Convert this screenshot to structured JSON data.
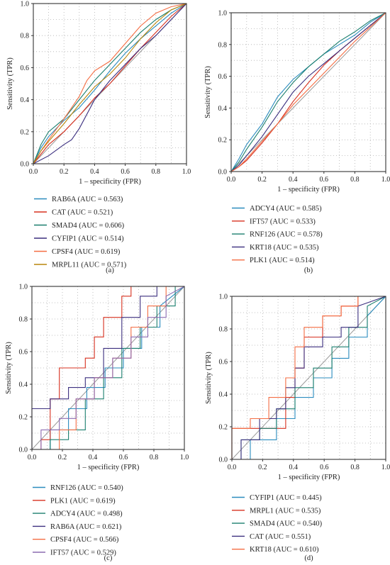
{
  "figure": {
    "common": {
      "xlabel": "1 – specificity (FPR)",
      "ylabel": "Sensitivity (TPR)",
      "ticks": [
        "0.0",
        "0.2",
        "0.4",
        "0.6",
        "0.8",
        "1.0"
      ]
    }
  },
  "chart_data": [
    {
      "type": "line",
      "panel_label": "(a)",
      "xlabel": "1 – specificity (FPR)",
      "ylabel": "Sensitivity (TPR)",
      "xlim": [
        0,
        1
      ],
      "ylim": [
        0,
        1
      ],
      "grid": true,
      "legend_position": "below",
      "series": [
        {
          "name": "RAB6A (AUC = 0.563)",
          "color": "#2b8cbe",
          "x": [
            0,
            0.05,
            0.1,
            0.15,
            0.2,
            0.3,
            0.4,
            0.5,
            0.6,
            0.7,
            0.8,
            0.9,
            1.0
          ],
          "y": [
            0,
            0.1,
            0.17,
            0.22,
            0.27,
            0.35,
            0.46,
            0.58,
            0.69,
            0.78,
            0.86,
            0.94,
            1.0
          ]
        },
        {
          "name": "CAT (AUC = 0.521)",
          "color": "#d7301f",
          "x": [
            0,
            0.05,
            0.1,
            0.2,
            0.3,
            0.4,
            0.5,
            0.6,
            0.7,
            0.8,
            0.9,
            1.0
          ],
          "y": [
            0,
            0.06,
            0.12,
            0.2,
            0.3,
            0.41,
            0.5,
            0.61,
            0.72,
            0.82,
            0.92,
            1.0
          ]
        },
        {
          "name": "SMAD4 (AUC = 0.606)",
          "color": "#1b7f6e",
          "x": [
            0,
            0.05,
            0.1,
            0.15,
            0.2,
            0.3,
            0.4,
            0.5,
            0.6,
            0.7,
            0.8,
            0.9,
            1.0
          ],
          "y": [
            0,
            0.12,
            0.2,
            0.24,
            0.28,
            0.4,
            0.52,
            0.62,
            0.72,
            0.82,
            0.9,
            0.96,
            1.0
          ]
        },
        {
          "name": "CYFIP1 (AUC = 0.514)",
          "color": "#3b2f7f",
          "x": [
            0,
            0.1,
            0.2,
            0.25,
            0.3,
            0.4,
            0.5,
            0.6,
            0.7,
            0.8,
            0.9,
            1.0
          ],
          "y": [
            0,
            0.05,
            0.12,
            0.15,
            0.22,
            0.4,
            0.52,
            0.62,
            0.72,
            0.8,
            0.9,
            1.0
          ]
        },
        {
          "name": "CPSF4 (AUC = 0.619)",
          "color": "#f46d43",
          "x": [
            0,
            0.05,
            0.1,
            0.2,
            0.3,
            0.35,
            0.4,
            0.5,
            0.6,
            0.7,
            0.8,
            0.9,
            1.0
          ],
          "y": [
            0,
            0.08,
            0.15,
            0.28,
            0.42,
            0.52,
            0.58,
            0.64,
            0.75,
            0.86,
            0.94,
            0.98,
            1.0
          ]
        },
        {
          "name": "MRPL11 (AUC = 0.571)",
          "color": "#b8860b",
          "x": [
            0,
            0.05,
            0.1,
            0.2,
            0.3,
            0.4,
            0.5,
            0.6,
            0.7,
            0.8,
            0.9,
            1.0
          ],
          "y": [
            0,
            0.08,
            0.14,
            0.25,
            0.37,
            0.48,
            0.56,
            0.66,
            0.78,
            0.88,
            0.96,
            1.0
          ]
        }
      ]
    },
    {
      "type": "line",
      "panel_label": "(b)",
      "xlabel": "1 – specificity (FPR)",
      "ylabel": "Sensitivity (TPR)",
      "xlim": [
        0,
        1
      ],
      "ylim": [
        0,
        1
      ],
      "grid": true,
      "legend_position": "below",
      "series": [
        {
          "name": "ADCY4 (AUC = 0.585)",
          "color": "#2b8cbe",
          "x": [
            0,
            0.05,
            0.1,
            0.2,
            0.3,
            0.4,
            0.5,
            0.6,
            0.7,
            0.8,
            0.9,
            1.0
          ],
          "y": [
            0,
            0.08,
            0.17,
            0.3,
            0.47,
            0.58,
            0.66,
            0.74,
            0.8,
            0.86,
            0.94,
            1.0
          ]
        },
        {
          "name": "IFT57 (AUC = 0.533)",
          "color": "#d7301f",
          "x": [
            0,
            0.05,
            0.1,
            0.2,
            0.3,
            0.4,
            0.5,
            0.6,
            0.7,
            0.8,
            0.9,
            1.0
          ],
          "y": [
            0,
            0.03,
            0.07,
            0.18,
            0.3,
            0.44,
            0.56,
            0.67,
            0.76,
            0.84,
            0.92,
            1.0
          ]
        },
        {
          "name": "RNF126 (AUC = 0.578)",
          "color": "#1b7f6e",
          "x": [
            0,
            0.05,
            0.1,
            0.2,
            0.3,
            0.4,
            0.5,
            0.6,
            0.7,
            0.8,
            0.9,
            1.0
          ],
          "y": [
            0,
            0.06,
            0.14,
            0.28,
            0.44,
            0.56,
            0.66,
            0.74,
            0.82,
            0.88,
            0.95,
            1.0
          ]
        },
        {
          "name": "KRT18 (AUC = 0.535)",
          "color": "#3b2f7f",
          "x": [
            0,
            0.05,
            0.1,
            0.2,
            0.3,
            0.4,
            0.5,
            0.6,
            0.7,
            0.8,
            0.9,
            1.0
          ],
          "y": [
            0,
            0.04,
            0.1,
            0.22,
            0.36,
            0.5,
            0.6,
            0.68,
            0.76,
            0.84,
            0.92,
            1.0
          ]
        },
        {
          "name": "PLK1 (AUC = 0.514)",
          "color": "#f46d43",
          "x": [
            0,
            0.05,
            0.1,
            0.2,
            0.3,
            0.4,
            0.5,
            0.6,
            0.7,
            0.8,
            0.9,
            1.0
          ],
          "y": [
            0,
            0.03,
            0.08,
            0.19,
            0.3,
            0.42,
            0.52,
            0.62,
            0.72,
            0.82,
            0.91,
            1.0
          ]
        }
      ]
    },
    {
      "type": "line",
      "panel_label": "(c)",
      "xlabel": "1 – specificity (FPR)",
      "ylabel": "Sensitivity (TPR)",
      "xlim": [
        0,
        1
      ],
      "ylim": [
        0,
        1
      ],
      "grid": true,
      "legend_position": "below",
      "series": [
        {
          "name": "RNF126 (AUC = 0.540)",
          "color": "#2b8cbe",
          "x": [
            0,
            0.12,
            0.12,
            0.24,
            0.24,
            0.36,
            0.36,
            0.48,
            0.48,
            0.6,
            0.6,
            0.72,
            0.72,
            0.84,
            0.84,
            1.0
          ],
          "y": [
            0,
            0,
            0.12,
            0.12,
            0.25,
            0.25,
            0.38,
            0.38,
            0.5,
            0.5,
            0.62,
            0.62,
            0.75,
            0.75,
            0.88,
            1.0
          ]
        },
        {
          "name": "PLK1 (AUC = 0.619)",
          "color": "#d7301f",
          "x": [
            0,
            0.06,
            0.06,
            0.12,
            0.12,
            0.18,
            0.18,
            0.35,
            0.35,
            0.41,
            0.41,
            0.47,
            0.47,
            0.59,
            0.59,
            0.65,
            0.65,
            1.0
          ],
          "y": [
            0,
            0,
            0.06,
            0.06,
            0.31,
            0.31,
            0.5,
            0.5,
            0.56,
            0.56,
            0.69,
            0.69,
            0.81,
            0.81,
            0.94,
            0.94,
            1.0,
            1.0
          ]
        },
        {
          "name": "ADCY4 (AUC = 0.498)",
          "color": "#1b7f6e",
          "x": [
            0,
            0.12,
            0.12,
            0.24,
            0.24,
            0.35,
            0.35,
            0.47,
            0.47,
            0.59,
            0.59,
            0.71,
            0.71,
            0.82,
            0.82,
            0.94,
            0.94,
            1.0
          ],
          "y": [
            0,
            0,
            0.06,
            0.06,
            0.12,
            0.12,
            0.31,
            0.31,
            0.44,
            0.44,
            0.62,
            0.62,
            0.75,
            0.75,
            0.88,
            0.88,
            1.0,
            1.0
          ]
        },
        {
          "name": "RAB6A (AUC = 0.621)",
          "color": "#3b2f7f",
          "x": [
            0,
            0,
            0.12,
            0.12,
            0.24,
            0.24,
            0.35,
            0.35,
            0.47,
            0.47,
            0.59,
            0.59,
            0.71,
            0.71,
            0.82,
            0.82,
            1.0
          ],
          "y": [
            0,
            0.25,
            0.25,
            0.31,
            0.31,
            0.38,
            0.38,
            0.44,
            0.44,
            0.62,
            0.62,
            0.81,
            0.81,
            0.94,
            0.94,
            1.0,
            1.0
          ]
        },
        {
          "name": "CPSF4 (AUC = 0.566)",
          "color": "#f46d43",
          "x": [
            0,
            0.18,
            0.18,
            0.29,
            0.29,
            0.41,
            0.41,
            0.53,
            0.53,
            0.65,
            0.65,
            0.76,
            0.76,
            0.88,
            0.88,
            1.0
          ],
          "y": [
            0,
            0,
            0.12,
            0.12,
            0.31,
            0.31,
            0.44,
            0.44,
            0.56,
            0.56,
            0.75,
            0.75,
            0.88,
            0.88,
            1.0,
            1.0
          ]
        },
        {
          "name": "IFT57 (AUC = 0.529)",
          "color": "#8c6bb1",
          "x": [
            0,
            0.06,
            0.06,
            0.18,
            0.18,
            0.29,
            0.29,
            0.41,
            0.41,
            0.53,
            0.53,
            0.65,
            0.65,
            0.76,
            0.76,
            0.88,
            0.88,
            1.0
          ],
          "y": [
            0,
            0,
            0.12,
            0.12,
            0.19,
            0.19,
            0.31,
            0.31,
            0.44,
            0.44,
            0.56,
            0.56,
            0.69,
            0.69,
            0.81,
            0.81,
            0.94,
            1.0
          ]
        }
      ]
    },
    {
      "type": "line",
      "panel_label": "(d)",
      "xlabel": "1 – specificity (FPR)",
      "ylabel": "Sensitivity (TPR)",
      "xlim": [
        0,
        1
      ],
      "ylim": [
        0,
        1
      ],
      "grid": true,
      "legend_position": "below",
      "series": [
        {
          "name": "CYFIP1 (AUC = 0.445)",
          "color": "#2b8cbe",
          "x": [
            0,
            0.12,
            0.12,
            0.29,
            0.29,
            0.41,
            0.41,
            0.53,
            0.53,
            0.65,
            0.65,
            0.76,
            0.76,
            0.88,
            0.88,
            1.0
          ],
          "y": [
            0,
            0,
            0.12,
            0.12,
            0.25,
            0.25,
            0.38,
            0.38,
            0.5,
            0.5,
            0.62,
            0.62,
            0.75,
            0.75,
            0.88,
            1.0
          ]
        },
        {
          "name": "MRPL1 (AUC = 0.535)",
          "color": "#d7301f",
          "x": [
            0,
            0,
            0.12,
            0.12,
            0.35,
            0.35,
            0.41,
            0.41,
            0.47,
            0.47,
            0.59,
            0.59,
            0.71,
            0.71,
            0.82,
            0.82,
            1.0
          ],
          "y": [
            0,
            0.19,
            0.19,
            0.19,
            0.19,
            0.38,
            0.38,
            0.56,
            0.56,
            0.75,
            0.75,
            0.88,
            0.88,
            0.94,
            0.94,
            1.0,
            1.0
          ]
        },
        {
          "name": "SMAD4 (AUC = 0.540)",
          "color": "#1b7f6e",
          "x": [
            0,
            0.06,
            0.06,
            0.18,
            0.18,
            0.29,
            0.29,
            0.41,
            0.41,
            0.53,
            0.53,
            0.65,
            0.65,
            0.76,
            0.76,
            0.88,
            0.88,
            1.0
          ],
          "y": [
            0,
            0,
            0.12,
            0.12,
            0.19,
            0.19,
            0.31,
            0.31,
            0.44,
            0.44,
            0.56,
            0.56,
            0.69,
            0.69,
            0.81,
            0.81,
            0.94,
            1.0
          ]
        },
        {
          "name": "CAT (AUC = 0.551)",
          "color": "#3b2f7f",
          "x": [
            0,
            0.06,
            0.06,
            0.18,
            0.18,
            0.29,
            0.29,
            0.35,
            0.35,
            0.41,
            0.41,
            0.47,
            0.47,
            0.59,
            0.59,
            0.71,
            0.71,
            0.82,
            0.82,
            1.0
          ],
          "y": [
            0,
            0,
            0.12,
            0.12,
            0.25,
            0.25,
            0.31,
            0.31,
            0.44,
            0.44,
            0.56,
            0.56,
            0.69,
            0.69,
            0.75,
            0.75,
            0.81,
            0.81,
            0.94,
            1.0
          ]
        },
        {
          "name": "KRT18 (AUC = 0.610)",
          "color": "#f46d43",
          "x": [
            0,
            0,
            0.12,
            0.12,
            0.24,
            0.24,
            0.35,
            0.35,
            0.41,
            0.41,
            0.47,
            0.47,
            0.59,
            0.59,
            0.71,
            0.71,
            0.82,
            0.82,
            1.0
          ],
          "y": [
            0,
            0.19,
            0.19,
            0.25,
            0.25,
            0.38,
            0.38,
            0.5,
            0.5,
            0.69,
            0.69,
            0.81,
            0.81,
            0.88,
            0.88,
            0.94,
            0.94,
            1.0,
            1.0
          ]
        }
      ]
    }
  ]
}
